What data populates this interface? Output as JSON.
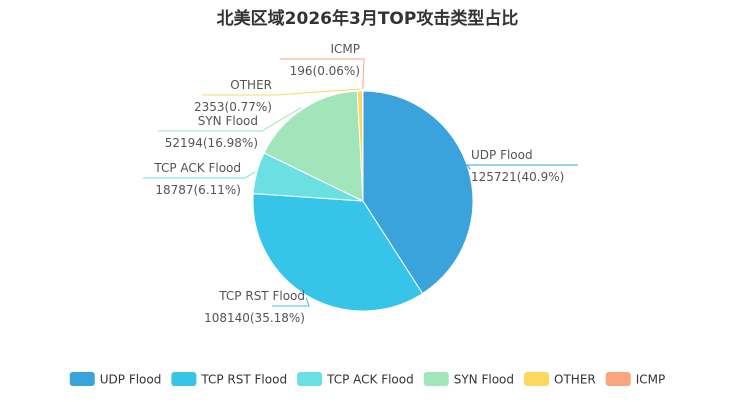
{
  "chart_data": {
    "type": "pie",
    "title": "北美区域2026年3月TOP攻击类型占比",
    "slices": [
      {
        "name": "UDP Flood",
        "value": 125721,
        "percent_label": "125721(40.9%)",
        "color": "#3aa3db"
      },
      {
        "name": "TCP RST Flood",
        "value": 108140,
        "percent_label": "108140(35.18%)",
        "color": "#36c5e8"
      },
      {
        "name": "TCP ACK Flood",
        "value": 18787,
        "percent_label": "18787(6.11%)",
        "color": "#6ae0e3"
      },
      {
        "name": "SYN Flood",
        "value": 52194,
        "percent_label": "52194(16.98%)",
        "color": "#a2e5ba"
      },
      {
        "name": "OTHER",
        "value": 2353,
        "percent_label": "2353(0.77%)",
        "color": "#fdd85d"
      },
      {
        "name": "ICMP",
        "value": 196,
        "percent_label": "196(0.06%)",
        "color": "#fba57c"
      }
    ],
    "legend_position": "bottom"
  }
}
